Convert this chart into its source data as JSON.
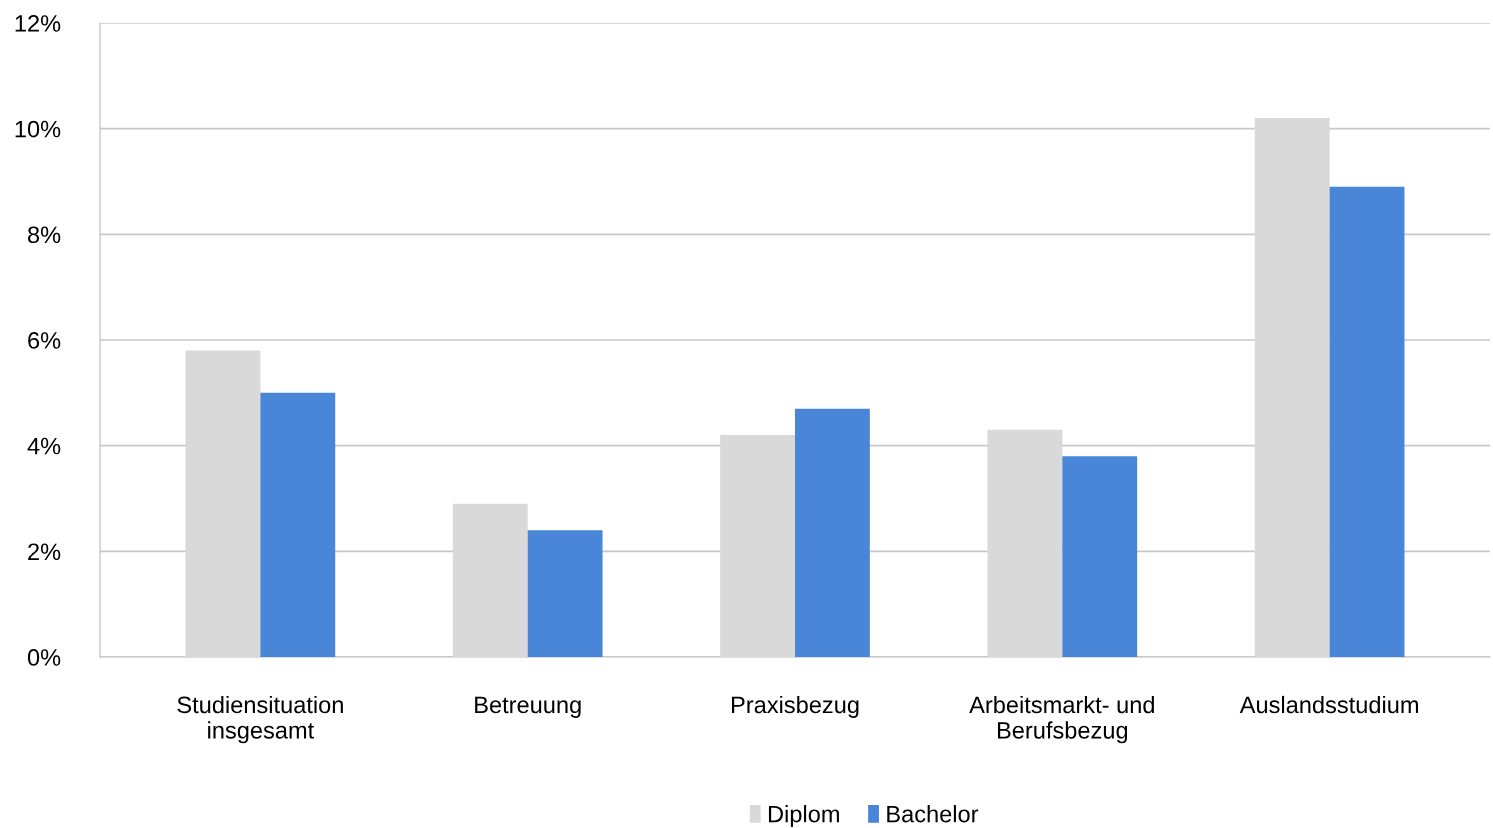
{
  "chart_data": {
    "type": "bar",
    "categories": [
      "Studiensituation\ninsgesamt",
      "Betreuung",
      "Praxisbezug",
      "Arbeitsmarkt- und\nBerufsbezug",
      "Auslandsstudium"
    ],
    "series": [
      {
        "name": "Diplom",
        "color": "#d9d9d9",
        "values": [
          5.8,
          2.9,
          4.2,
          4.3,
          10.2
        ]
      },
      {
        "name": "Bachelor",
        "color": "#4a86d8",
        "values": [
          5.0,
          2.4,
          4.7,
          3.8,
          8.9
        ]
      }
    ],
    "ylim": [
      0,
      12
    ],
    "yticks": [
      {
        "value": 0,
        "label": "0%"
      },
      {
        "value": 2,
        "label": "2%"
      },
      {
        "value": 4,
        "label": "4%"
      },
      {
        "value": 6,
        "label": "6%"
      },
      {
        "value": 8,
        "label": "8%"
      },
      {
        "value": 10,
        "label": "10%"
      },
      {
        "value": 12,
        "label": "12%"
      }
    ],
    "grid": "y",
    "legend": "bottom"
  }
}
